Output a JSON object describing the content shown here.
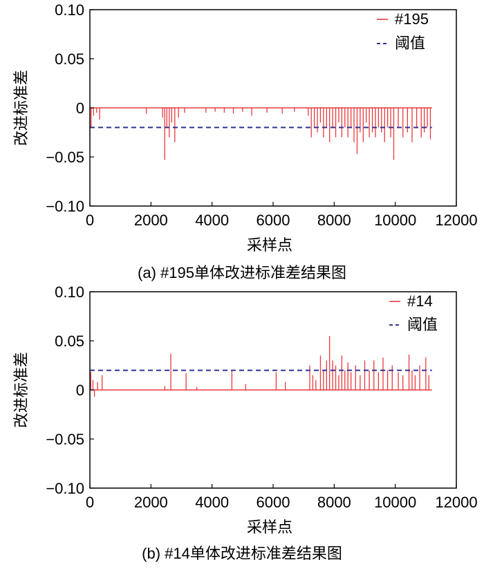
{
  "chart_data": [
    {
      "type": "line",
      "caption": "(a) #195单体改进标准差结果图",
      "xlabel": "采样点",
      "ylabel": "改进标准差",
      "xlim": [
        0,
        12000
      ],
      "ylim": [
        -0.1,
        0.1
      ],
      "x_ticks": [
        "0",
        "2000",
        "4000",
        "6000",
        "8000",
        "10000",
        "12000"
      ],
      "y_ticks": [
        "0.10",
        "0.05",
        "0",
        "−0.05",
        "−0.10"
      ],
      "grid": false,
      "legend_position": "top-right",
      "series": [
        {
          "name": "#195",
          "color": "#e8383d",
          "style": "solid",
          "baseline": 0,
          "x_range": [
            0,
            11200
          ],
          "spikes": [
            {
              "x": 40,
              "y": -0.02
            },
            {
              "x": 120,
              "y": -0.008
            },
            {
              "x": 220,
              "y": -0.005
            },
            {
              "x": 320,
              "y": -0.012
            },
            {
              "x": 1850,
              "y": -0.006
            },
            {
              "x": 2380,
              "y": -0.01
            },
            {
              "x": 2450,
              "y": -0.053
            },
            {
              "x": 2520,
              "y": -0.02
            },
            {
              "x": 2600,
              "y": -0.03
            },
            {
              "x": 2680,
              "y": -0.015
            },
            {
              "x": 2780,
              "y": -0.035
            },
            {
              "x": 2900,
              "y": -0.01
            },
            {
              "x": 3100,
              "y": -0.005
            },
            {
              "x": 3800,
              "y": -0.005
            },
            {
              "x": 4100,
              "y": -0.004
            },
            {
              "x": 4400,
              "y": -0.005
            },
            {
              "x": 4700,
              "y": -0.006
            },
            {
              "x": 5000,
              "y": -0.004
            },
            {
              "x": 5300,
              "y": -0.008
            },
            {
              "x": 5800,
              "y": -0.005
            },
            {
              "x": 6300,
              "y": -0.006
            },
            {
              "x": 6700,
              "y": -0.004
            },
            {
              "x": 7150,
              "y": -0.008
            },
            {
              "x": 7250,
              "y": -0.03
            },
            {
              "x": 7350,
              "y": -0.02
            },
            {
              "x": 7450,
              "y": -0.025
            },
            {
              "x": 7550,
              "y": -0.015
            },
            {
              "x": 7650,
              "y": -0.03
            },
            {
              "x": 7750,
              "y": -0.02
            },
            {
              "x": 7850,
              "y": -0.035
            },
            {
              "x": 7950,
              "y": -0.02
            },
            {
              "x": 8050,
              "y": -0.03
            },
            {
              "x": 8150,
              "y": -0.015
            },
            {
              "x": 8250,
              "y": -0.03
            },
            {
              "x": 8350,
              "y": -0.02
            },
            {
              "x": 8450,
              "y": -0.03
            },
            {
              "x": 8550,
              "y": -0.02
            },
            {
              "x": 8650,
              "y": -0.035
            },
            {
              "x": 8750,
              "y": -0.047
            },
            {
              "x": 8850,
              "y": -0.025
            },
            {
              "x": 8950,
              "y": -0.035
            },
            {
              "x": 9050,
              "y": -0.015
            },
            {
              "x": 9150,
              "y": -0.03
            },
            {
              "x": 9250,
              "y": -0.025
            },
            {
              "x": 9350,
              "y": -0.03
            },
            {
              "x": 9450,
              "y": -0.02
            },
            {
              "x": 9550,
              "y": -0.025
            },
            {
              "x": 9650,
              "y": -0.035
            },
            {
              "x": 9750,
              "y": -0.02
            },
            {
              "x": 9850,
              "y": -0.03
            },
            {
              "x": 9950,
              "y": -0.053
            },
            {
              "x": 10100,
              "y": -0.02
            },
            {
              "x": 10250,
              "y": -0.03
            },
            {
              "x": 10400,
              "y": -0.025
            },
            {
              "x": 10550,
              "y": -0.035
            },
            {
              "x": 10700,
              "y": -0.02
            },
            {
              "x": 10850,
              "y": -0.03
            },
            {
              "x": 10950,
              "y": -0.025
            },
            {
              "x": 11050,
              "y": -0.02
            },
            {
              "x": 11150,
              "y": -0.032
            }
          ]
        },
        {
          "name": "阈值",
          "color": "#2e3192",
          "style": "dashed",
          "x": [
            0,
            11200
          ],
          "y": [
            -0.02,
            -0.02
          ]
        }
      ]
    },
    {
      "type": "line",
      "caption": "(b) #14单体改进标准差结果图",
      "xlabel": "采样点",
      "ylabel": "改进标准差",
      "xlim": [
        0,
        12000
      ],
      "ylim": [
        -0.1,
        0.1
      ],
      "x_ticks": [
        "0",
        "2000",
        "4000",
        "6000",
        "8000",
        "10000",
        "12000"
      ],
      "y_ticks": [
        "0.10",
        "0.05",
        "0",
        "−0.05",
        "−0.10"
      ],
      "grid": false,
      "legend_position": "top-right",
      "series": [
        {
          "name": "#14",
          "color": "#e8383d",
          "style": "solid",
          "baseline": 0,
          "x_range": [
            0,
            11200
          ],
          "spikes": [
            {
              "x": 30,
              "y": 0.018
            },
            {
              "x": 100,
              "y": 0.01
            },
            {
              "x": 150,
              "y": -0.007
            },
            {
              "x": 250,
              "y": 0.008
            },
            {
              "x": 400,
              "y": 0.015
            },
            {
              "x": 2450,
              "y": 0.004
            },
            {
              "x": 2650,
              "y": 0.037
            },
            {
              "x": 3150,
              "y": 0.017
            },
            {
              "x": 3500,
              "y": 0.003
            },
            {
              "x": 4650,
              "y": 0.02
            },
            {
              "x": 5100,
              "y": 0.006
            },
            {
              "x": 6100,
              "y": 0.018
            },
            {
              "x": 6400,
              "y": 0.008
            },
            {
              "x": 7200,
              "y": 0.025
            },
            {
              "x": 7300,
              "y": 0.015
            },
            {
              "x": 7400,
              "y": 0.01
            },
            {
              "x": 7550,
              "y": 0.035
            },
            {
              "x": 7650,
              "y": 0.02
            },
            {
              "x": 7750,
              "y": 0.03
            },
            {
              "x": 7850,
              "y": 0.055
            },
            {
              "x": 7950,
              "y": 0.03
            },
            {
              "x": 8050,
              "y": 0.025
            },
            {
              "x": 8150,
              "y": 0.015
            },
            {
              "x": 8250,
              "y": 0.035
            },
            {
              "x": 8350,
              "y": 0.02
            },
            {
              "x": 8450,
              "y": 0.028
            },
            {
              "x": 8550,
              "y": 0.018
            },
            {
              "x": 8700,
              "y": 0.025
            },
            {
              "x": 8850,
              "y": 0.015
            },
            {
              "x": 9000,
              "y": 0.03
            },
            {
              "x": 9150,
              "y": 0.02
            },
            {
              "x": 9300,
              "y": 0.03
            },
            {
              "x": 9450,
              "y": 0.018
            },
            {
              "x": 9600,
              "y": 0.033
            },
            {
              "x": 9750,
              "y": 0.02
            },
            {
              "x": 9900,
              "y": 0.025
            },
            {
              "x": 10100,
              "y": 0.018
            },
            {
              "x": 10250,
              "y": 0.015
            },
            {
              "x": 10450,
              "y": 0.036
            },
            {
              "x": 10550,
              "y": 0.02
            },
            {
              "x": 10650,
              "y": 0.015
            },
            {
              "x": 10800,
              "y": 0.025
            },
            {
              "x": 11000,
              "y": 0.033
            },
            {
              "x": 11100,
              "y": 0.015
            }
          ]
        },
        {
          "name": "阈值",
          "color": "#2e3192",
          "style": "dashed",
          "x": [
            0,
            11200
          ],
          "y": [
            0.02,
            0.02
          ]
        }
      ]
    }
  ]
}
